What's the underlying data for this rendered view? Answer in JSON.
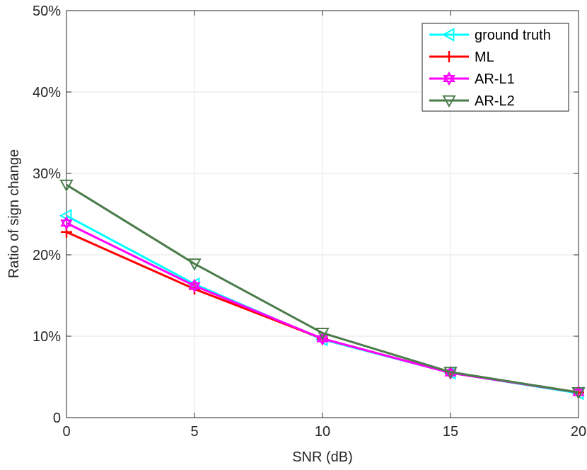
{
  "chart_data": {
    "type": "line",
    "title": "",
    "xlabel": "SNR (dB)",
    "ylabel": "Ratio of sign change",
    "x": [
      0,
      5,
      10,
      15,
      20
    ],
    "xlim": [
      0,
      20
    ],
    "ylim": [
      0,
      50
    ],
    "xticks": [
      0,
      5,
      10,
      15,
      20
    ],
    "xtick_labels": [
      "0",
      "5",
      "10",
      "15",
      "20"
    ],
    "yticks": [
      0,
      10,
      20,
      30,
      40,
      50
    ],
    "ytick_labels": [
      "0",
      "10%",
      "20%",
      "30%",
      "40%",
      "50%"
    ],
    "grid": true,
    "legend_position": "top-right",
    "series": [
      {
        "name": "ground truth",
        "color": "#00FFFF",
        "marker": "triangle-left",
        "values": [
          24.8,
          16.4,
          9.6,
          5.5,
          3.0
        ]
      },
      {
        "name": "ML",
        "color": "#FF0000",
        "marker": "plus",
        "values": [
          22.8,
          15.8,
          9.7,
          5.5,
          3.1
        ]
      },
      {
        "name": "AR-L1",
        "color": "#FF00FF",
        "marker": "hexagram",
        "values": [
          23.9,
          16.2,
          9.7,
          5.5,
          3.1
        ]
      },
      {
        "name": "AR-L2",
        "color": "#4A7C4A",
        "marker": "triangle-down",
        "values": [
          28.6,
          18.9,
          10.4,
          5.6,
          3.1
        ]
      }
    ]
  }
}
